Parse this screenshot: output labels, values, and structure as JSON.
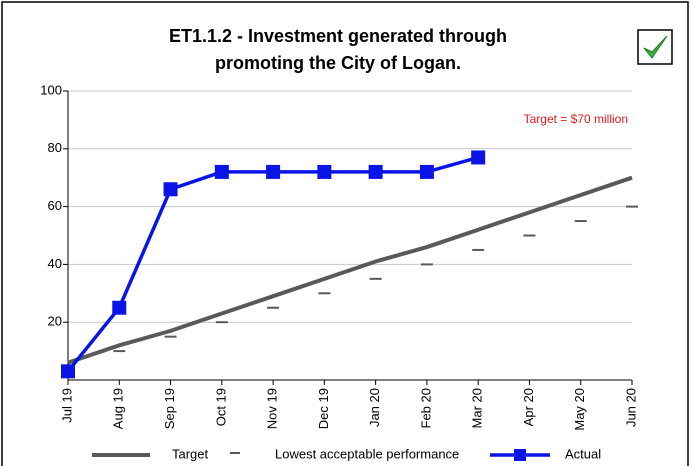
{
  "chart_data": {
    "type": "line",
    "title": [
      "ET1.1.2 - Investment generated through",
      "promoting the City of Logan."
    ],
    "annotation": "Target = $70 million",
    "annotation_color": "#e41a1c",
    "categories": [
      "Jul 19",
      "Aug 19",
      "Sep 19",
      "Oct 19",
      "Nov 19",
      "Dec 19",
      "Jan 20",
      "Feb 20",
      "Mar 20",
      "Apr 20",
      "May 20",
      "Jun 20"
    ],
    "series": [
      {
        "name": "Target",
        "color": "#595959",
        "style": "line",
        "values": [
          6,
          12,
          17,
          23,
          29,
          35,
          41,
          46,
          52,
          58,
          64,
          70
        ]
      },
      {
        "name": "Lowest acceptable performance",
        "color": "#595959",
        "style": "dash",
        "values": [
          5,
          10,
          15,
          20,
          25,
          30,
          35,
          40,
          45,
          50,
          55,
          60
        ]
      },
      {
        "name": "Actual",
        "color": "#0a14e6",
        "style": "line-square",
        "values": [
          3,
          25,
          66,
          72,
          72,
          72,
          72,
          72,
          77,
          null,
          null,
          null
        ]
      }
    ],
    "ylim": [
      0,
      100
    ],
    "yticks": [
      20,
      40,
      60,
      80,
      100
    ],
    "grid": true,
    "legend": "bottom"
  }
}
